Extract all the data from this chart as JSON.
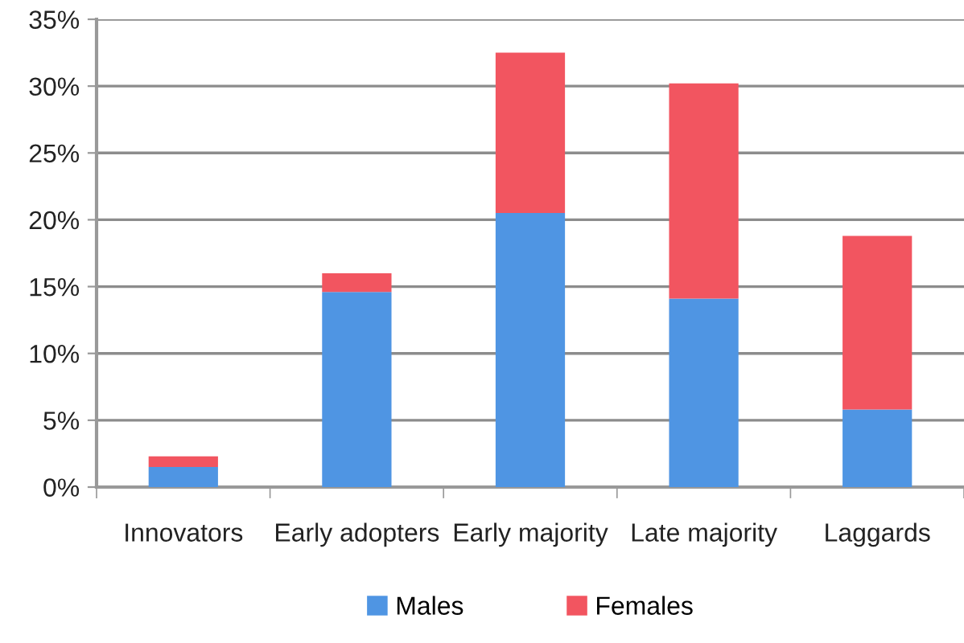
{
  "chart_data": {
    "type": "bar",
    "stacked": true,
    "categories": [
      "Innovators",
      "Early adopters",
      "Early majority",
      "Late majority",
      "Laggards"
    ],
    "series": [
      {
        "name": "Males",
        "color": "#4f95e3",
        "values": [
          1.5,
          14.6,
          20.5,
          14.1,
          5.8
        ]
      },
      {
        "name": "Females",
        "color": "#f25560",
        "values": [
          0.8,
          1.4,
          12.0,
          16.1,
          13.0
        ]
      }
    ],
    "ylim": [
      0,
      35
    ],
    "yticks": [
      {
        "value": 0,
        "label": "0%"
      },
      {
        "value": 5,
        "label": "5%"
      },
      {
        "value": 10,
        "label": "10%"
      },
      {
        "value": 15,
        "label": "15%"
      },
      {
        "value": 20,
        "label": "20%"
      },
      {
        "value": 25,
        "label": "25%"
      },
      {
        "value": 30,
        "label": "30%"
      },
      {
        "value": 35,
        "label": "35%"
      }
    ],
    "grid": "y",
    "legend": "bottom"
  }
}
